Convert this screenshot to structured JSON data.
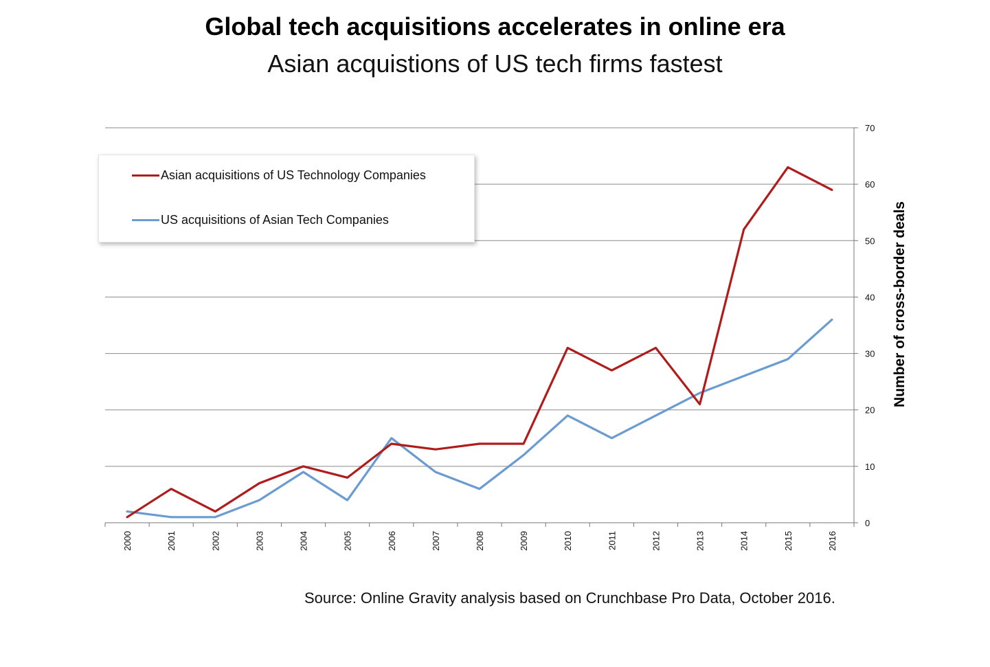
{
  "title": "Global tech acquisitions accelerates in online era",
  "subtitle": "Asian acquistions of US tech firms fastest",
  "source": "Source: Online Gravity analysis based on Crunchbase Pro Data, October 2016.",
  "chart_data": {
    "type": "line",
    "title": "Global tech acquisitions accelerates in online era",
    "subtitle": "Asian acquistions of US tech firms fastest",
    "xlabel": "",
    "ylabel": "Number of cross-border deals",
    "y_axis_position": "right",
    "ylim": [
      0,
      70
    ],
    "yticks": [
      0,
      10,
      20,
      30,
      40,
      50,
      60,
      70
    ],
    "grid": true,
    "legend_position": "top-left",
    "categories": [
      "2000",
      "2001",
      "2002",
      "2003",
      "2004",
      "2005",
      "2006",
      "2007",
      "2008",
      "2009",
      "2010",
      "2011",
      "2012",
      "2013",
      "2014",
      "2015",
      "2016"
    ],
    "series": [
      {
        "name": "Asian acquisitions of US Technology Companies",
        "color": "#b01b1b",
        "values": [
          1,
          6,
          2,
          7,
          10,
          8,
          14,
          13,
          14,
          14,
          31,
          27,
          31,
          21,
          52,
          63,
          59
        ]
      },
      {
        "name": "US acquisitions of Asian Tech Companies",
        "color": "#6a9bd1",
        "values": [
          2,
          1,
          1,
          4,
          9,
          4,
          15,
          9,
          6,
          12,
          19,
          15,
          19,
          23,
          26,
          29,
          36
        ]
      }
    ]
  }
}
